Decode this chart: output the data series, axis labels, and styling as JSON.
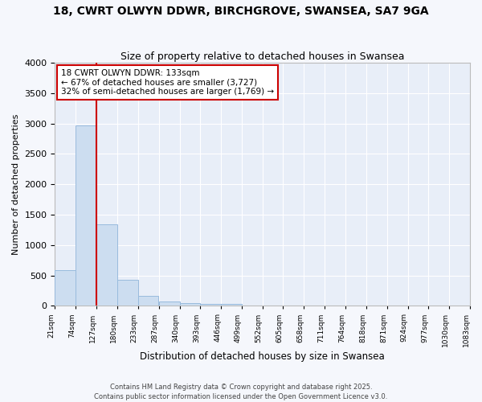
{
  "title": "18, CWRT OLWYN DDWR, BIRCHGROVE, SWANSEA, SA7 9GA",
  "subtitle": "Size of property relative to detached houses in Swansea",
  "xlabel": "Distribution of detached houses by size in Swansea",
  "ylabel": "Number of detached properties",
  "bar_color": "#ccddf0",
  "bar_edge_color": "#99bbdd",
  "background_color": "#e8eef8",
  "grid_color": "#ffffff",
  "annotation_text": "18 CWRT OLWYN DDWR: 133sqm\n← 67% of detached houses are smaller (3,727)\n32% of semi-detached houses are larger (1,769) →",
  "annotation_box_color": "#ffffff",
  "annotation_box_edge": "#cc0000",
  "vline_x": 127,
  "vline_color": "#cc0000",
  "bins": [
    21,
    74,
    127,
    180,
    233,
    287,
    340,
    393,
    446,
    499,
    552,
    605,
    658,
    711,
    764,
    818,
    871,
    924,
    977,
    1030,
    1083
  ],
  "counts": [
    580,
    2970,
    1340,
    430,
    160,
    70,
    40,
    25,
    25,
    0,
    0,
    0,
    0,
    0,
    0,
    0,
    0,
    0,
    0,
    0
  ],
  "ylim": [
    0,
    4000
  ],
  "yticks": [
    0,
    500,
    1000,
    1500,
    2000,
    2500,
    3000,
    3500,
    4000
  ],
  "footer_text": "Contains HM Land Registry data © Crown copyright and database right 2025.\nContains public sector information licensed under the Open Government Licence v3.0.",
  "tick_labels": [
    "21sqm",
    "74sqm",
    "127sqm",
    "180sqm",
    "233sqm",
    "287sqm",
    "340sqm",
    "393sqm",
    "446sqm",
    "499sqm",
    "552sqm",
    "605sqm",
    "658sqm",
    "711sqm",
    "764sqm",
    "818sqm",
    "871sqm",
    "924sqm",
    "977sqm",
    "1030sqm",
    "1083sqm"
  ]
}
